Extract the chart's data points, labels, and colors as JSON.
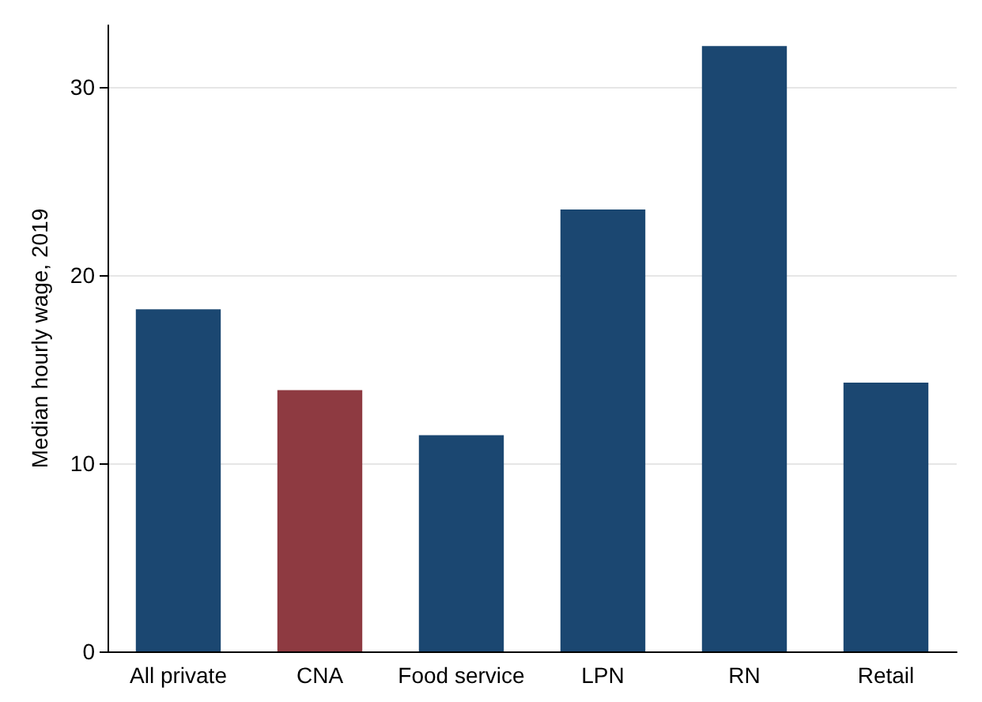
{
  "chart_data": {
    "type": "bar",
    "ylabel": "Median hourly wage, 2019",
    "categories": [
      "All private",
      "CNA",
      "Food service",
      "LPN",
      "RN",
      "Retail"
    ],
    "values": [
      18.2,
      13.9,
      11.5,
      23.5,
      32.2,
      14.3
    ],
    "colors": [
      "#1b4771",
      "#8e3a41",
      "#1b4771",
      "#1b4771",
      "#1b4771",
      "#1b4771"
    ],
    "ylim": [
      0,
      33.3
    ],
    "yticks": [
      0,
      10,
      20,
      30
    ],
    "grid": "y"
  }
}
